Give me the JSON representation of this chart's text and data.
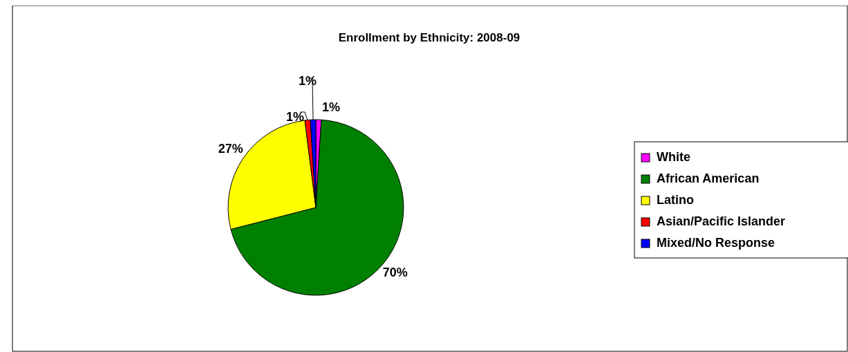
{
  "chart_data": {
    "type": "pie",
    "title": "Enrollment by Ethnicity: 2008-09",
    "categories": [
      "White",
      "African American",
      "Latino",
      "Asian/Pacific Islander",
      "Mixed/No Response"
    ],
    "values": [
      1,
      70,
      27,
      1,
      1
    ],
    "colors": [
      "#ff00ff",
      "#008000",
      "#ffff00",
      "#ff0000",
      "#0000ff"
    ],
    "value_labels": [
      "1%",
      "70%",
      "27%",
      "1%",
      "1%"
    ],
    "legend": "right"
  }
}
